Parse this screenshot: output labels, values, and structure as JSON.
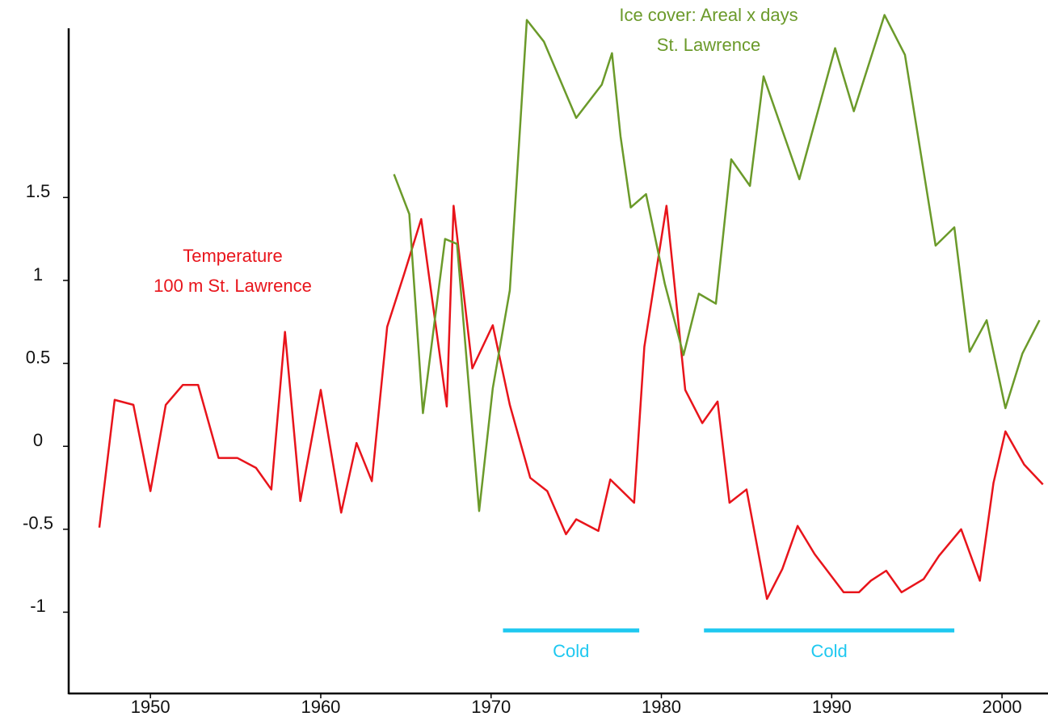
{
  "chart_data": {
    "type": "line",
    "xlim": [
      1945.2,
      2002.7
    ],
    "ylim": [
      -1.49,
      2.52
    ],
    "xticks": [
      1950,
      1960,
      1970,
      1980,
      1990,
      2000
    ],
    "yticks": [
      -1,
      -0.5,
      0,
      0.5,
      1,
      1.5
    ],
    "series": [
      {
        "name": [
          "Temperature",
          "100 m St. Lawrence"
        ],
        "color": "#e8141b",
        "x": [
          1947.0,
          1947.9,
          1949.0,
          1950.0,
          1950.9,
          1951.9,
          1952.8,
          1954.0,
          1955.1,
          1956.2,
          1957.1,
          1957.9,
          1958.8,
          1960.0,
          1961.2,
          1962.1,
          1963.0,
          1963.9,
          1964.9,
          1965.9,
          1967.4,
          1967.8,
          1968.9,
          1970.1,
          1971.1,
          1972.3,
          1973.3,
          1974.4,
          1975.0,
          1976.3,
          1977.0,
          1978.4,
          1979.0,
          1980.3,
          1981.4,
          1982.4,
          1983.3,
          1984.0,
          1985.0,
          1986.2,
          1987.1,
          1988.0,
          1989.0,
          1990.7,
          1991.6,
          1992.3,
          1993.2,
          1994.1,
          1995.4,
          1996.3,
          1997.6,
          1998.7,
          1999.5,
          2000.2,
          2001.3,
          2002.4
        ],
        "values": [
          -0.49,
          0.28,
          0.25,
          -0.27,
          0.25,
          0.37,
          0.37,
          -0.07,
          -0.07,
          -0.13,
          -0.26,
          0.69,
          -0.33,
          0.34,
          -0.4,
          0.02,
          -0.21,
          0.72,
          1.04,
          1.37,
          0.24,
          1.45,
          0.47,
          0.73,
          0.25,
          -0.19,
          -0.27,
          -0.53,
          -0.44,
          -0.51,
          -0.2,
          -0.34,
          0.6,
          1.45,
          0.34,
          0.14,
          0.27,
          -0.34,
          -0.26,
          -0.92,
          -0.74,
          -0.48,
          -0.65,
          -0.88,
          -0.88,
          -0.81,
          -0.75,
          -0.88,
          -0.8,
          -0.66,
          -0.5,
          -0.81,
          -0.22,
          0.09,
          -0.11,
          -0.23
        ]
      },
      {
        "name": [
          "Ice cover: Areal x days",
          "St. Lawrence"
        ],
        "color": "#6b9a2a",
        "x": [
          1964.3,
          1965.2,
          1966.0,
          1967.3,
          1968.0,
          1969.3,
          1970.1,
          1971.1,
          1972.1,
          1973.1,
          1975.0,
          1976.5,
          1977.1,
          1977.6,
          1978.2,
          1979.1,
          1980.2,
          1981.3,
          1982.2,
          1983.2,
          1984.1,
          1985.2,
          1986.0,
          1988.1,
          1990.2,
          1991.3,
          1993.1,
          1994.3,
          1996.1,
          1997.2,
          1998.1,
          1999.1,
          2000.2,
          2001.2,
          2002.2
        ],
        "values": [
          1.64,
          1.4,
          0.2,
          1.25,
          1.22,
          -0.39,
          0.35,
          0.94,
          2.57,
          2.44,
          1.98,
          2.18,
          2.37,
          1.87,
          1.44,
          1.52,
          0.98,
          0.55,
          0.92,
          0.86,
          1.73,
          1.57,
          2.23,
          1.61,
          2.4,
          2.02,
          2.6,
          2.36,
          1.21,
          1.32,
          0.57,
          0.76,
          0.23,
          0.56,
          0.76
        ]
      }
    ],
    "periods": [
      {
        "label": "Cold",
        "start": 1970.7,
        "end": 1978.7,
        "y": -1.11,
        "color": "#1ec8f0"
      },
      {
        "label": "Cold",
        "start": 1982.5,
        "end": 1997.2,
        "y": -1.11,
        "color": "#1ec8f0"
      }
    ]
  }
}
